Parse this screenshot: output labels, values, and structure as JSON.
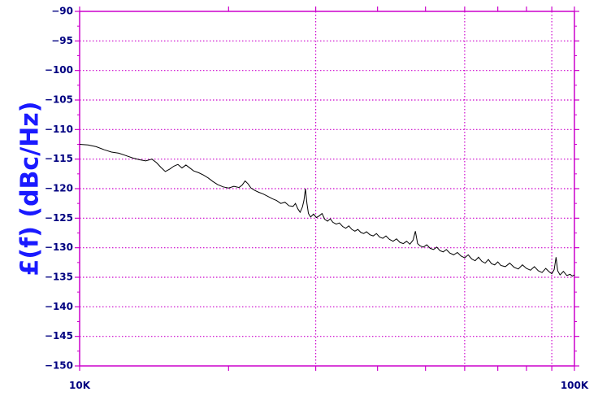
{
  "chart_data": {
    "type": "line",
    "title": "",
    "xlabel": "",
    "ylabel": "£(f) (dBc/Hz)",
    "x_scale": "log",
    "xlim": [
      10000,
      100000
    ],
    "ylim": [
      -150,
      -90
    ],
    "x_tick_labels": [
      {
        "value": 10000,
        "label": "10K"
      },
      {
        "value": 100000,
        "label": "100K"
      }
    ],
    "y_ticks": [
      -90,
      -95,
      -100,
      -105,
      -110,
      -115,
      -120,
      -125,
      -130,
      -135,
      -140,
      -145,
      -150
    ],
    "grid": true,
    "colors": {
      "axis": "#cc00cc",
      "grid": "#cc00cc",
      "line": "#000000",
      "ticklabel": "#000080",
      "ylabel": "#1a1aff"
    },
    "series": [
      {
        "values": [
          [
            10000,
            -112.5
          ],
          [
            10400,
            -112.6
          ],
          [
            10800,
            -112.9
          ],
          [
            11200,
            -113.4
          ],
          [
            11600,
            -113.8
          ],
          [
            12000,
            -114.0
          ],
          [
            12400,
            -114.4
          ],
          [
            12800,
            -114.8
          ],
          [
            13200,
            -115.1
          ],
          [
            13600,
            -115.3
          ],
          [
            14000,
            -115.0
          ],
          [
            14300,
            -115.6
          ],
          [
            14600,
            -116.4
          ],
          [
            14900,
            -117.1
          ],
          [
            15200,
            -116.7
          ],
          [
            15500,
            -116.2
          ],
          [
            15800,
            -115.9
          ],
          [
            16100,
            -116.5
          ],
          [
            16400,
            -116.0
          ],
          [
            16700,
            -116.5
          ],
          [
            17000,
            -117.0
          ],
          [
            17400,
            -117.3
          ],
          [
            17800,
            -117.7
          ],
          [
            18200,
            -118.2
          ],
          [
            18600,
            -118.8
          ],
          [
            19000,
            -119.3
          ],
          [
            19500,
            -119.7
          ],
          [
            20000,
            -119.9
          ],
          [
            20500,
            -119.6
          ],
          [
            21000,
            -119.8
          ],
          [
            21300,
            -119.4
          ],
          [
            21600,
            -118.7
          ],
          [
            21900,
            -119.2
          ],
          [
            22200,
            -119.9
          ],
          [
            22600,
            -120.3
          ],
          [
            23000,
            -120.6
          ],
          [
            23500,
            -120.9
          ],
          [
            24000,
            -121.3
          ],
          [
            24500,
            -121.7
          ],
          [
            25000,
            -122.0
          ],
          [
            25500,
            -122.5
          ],
          [
            26000,
            -122.3
          ],
          [
            26500,
            -122.9
          ],
          [
            27000,
            -123.0
          ],
          [
            27300,
            -122.5
          ],
          [
            27600,
            -123.4
          ],
          [
            27900,
            -124.0
          ],
          [
            28200,
            -123.1
          ],
          [
            28400,
            -122.0
          ],
          [
            28600,
            -120.0
          ],
          [
            28800,
            -122.5
          ],
          [
            29000,
            -124.2
          ],
          [
            29300,
            -124.8
          ],
          [
            29700,
            -124.3
          ],
          [
            30100,
            -124.9
          ],
          [
            30500,
            -124.6
          ],
          [
            30900,
            -124.2
          ],
          [
            31300,
            -125.2
          ],
          [
            31700,
            -125.5
          ],
          [
            32100,
            -125.1
          ],
          [
            32500,
            -125.7
          ],
          [
            33000,
            -126.0
          ],
          [
            33500,
            -125.8
          ],
          [
            34000,
            -126.4
          ],
          [
            34500,
            -126.7
          ],
          [
            35000,
            -126.3
          ],
          [
            35500,
            -126.9
          ],
          [
            36000,
            -127.2
          ],
          [
            36500,
            -126.9
          ],
          [
            37000,
            -127.4
          ],
          [
            37500,
            -127.6
          ],
          [
            38000,
            -127.3
          ],
          [
            38600,
            -127.8
          ],
          [
            39200,
            -128.0
          ],
          [
            39800,
            -127.6
          ],
          [
            40400,
            -128.2
          ],
          [
            41000,
            -128.4
          ],
          [
            41600,
            -128.0
          ],
          [
            42300,
            -128.6
          ],
          [
            43000,
            -128.9
          ],
          [
            43700,
            -128.5
          ],
          [
            44400,
            -129.1
          ],
          [
            45100,
            -129.3
          ],
          [
            45800,
            -128.9
          ],
          [
            46500,
            -129.4
          ],
          [
            47200,
            -128.7
          ],
          [
            47700,
            -127.2
          ],
          [
            48200,
            -129.3
          ],
          [
            48800,
            -129.7
          ],
          [
            49500,
            -129.9
          ],
          [
            50300,
            -129.5
          ],
          [
            51100,
            -130.1
          ],
          [
            51900,
            -130.3
          ],
          [
            52700,
            -129.9
          ],
          [
            53500,
            -130.5
          ],
          [
            54300,
            -130.7
          ],
          [
            55100,
            -130.3
          ],
          [
            56000,
            -130.9
          ],
          [
            57000,
            -131.2
          ],
          [
            58000,
            -130.8
          ],
          [
            59000,
            -131.4
          ],
          [
            60000,
            -131.7
          ],
          [
            61000,
            -131.2
          ],
          [
            62000,
            -131.9
          ],
          [
            63000,
            -132.2
          ],
          [
            64000,
            -131.6
          ],
          [
            65000,
            -132.3
          ],
          [
            66000,
            -132.6
          ],
          [
            67000,
            -132.0
          ],
          [
            68000,
            -132.7
          ],
          [
            69000,
            -132.9
          ],
          [
            70000,
            -132.4
          ],
          [
            71000,
            -133.0
          ],
          [
            72500,
            -133.2
          ],
          [
            74000,
            -132.6
          ],
          [
            75500,
            -133.3
          ],
          [
            77000,
            -133.6
          ],
          [
            78500,
            -132.9
          ],
          [
            80000,
            -133.5
          ],
          [
            81500,
            -133.8
          ],
          [
            83000,
            -133.2
          ],
          [
            84500,
            -133.9
          ],
          [
            86000,
            -134.2
          ],
          [
            87500,
            -133.5
          ],
          [
            89000,
            -134.1
          ],
          [
            90000,
            -134.4
          ],
          [
            91000,
            -133.7
          ],
          [
            91800,
            -131.6
          ],
          [
            92500,
            -133.9
          ],
          [
            93500,
            -134.6
          ],
          [
            95000,
            -134.0
          ],
          [
            96500,
            -134.7
          ],
          [
            98000,
            -134.5
          ],
          [
            99000,
            -134.8
          ],
          [
            100000,
            -134.6
          ]
        ]
      }
    ]
  }
}
